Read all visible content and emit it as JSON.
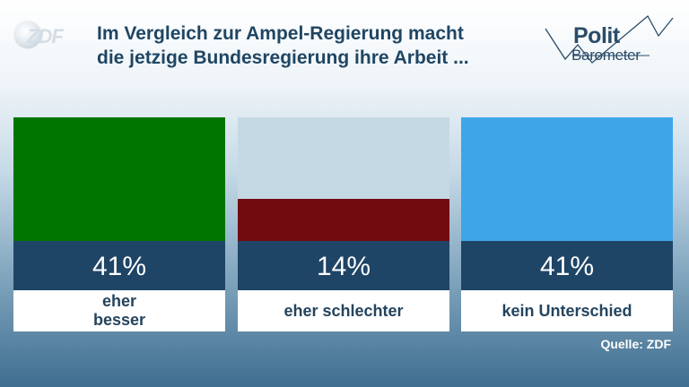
{
  "branding": {
    "broadcaster": "ZDF",
    "series_word_1": "Polit",
    "series_word_2": "Barometer"
  },
  "chart_data": {
    "type": "bar",
    "title": "Im Vergleich zur Ampel-Regierung macht die jetzige Bundesregierung ihre Arbeit ...",
    "title_lines": [
      "Im Vergleich zur Ampel-Regierung macht",
      "die jetzige Bundesregierung ihre Arbeit ..."
    ],
    "categories": [
      "eher besser",
      "eher schlechter",
      "kein Unterschied"
    ],
    "values": [
      41,
      14,
      41
    ],
    "value_labels": [
      "41%",
      "14%",
      "41%"
    ],
    "unit": "%",
    "ylim": [
      0,
      41
    ],
    "colors": [
      "#007500",
      "#720b0f",
      "#3ea6e8"
    ],
    "track_color": "#c5d9e5",
    "grid": false,
    "legend": "none"
  },
  "source": "Quelle: ZDF"
}
